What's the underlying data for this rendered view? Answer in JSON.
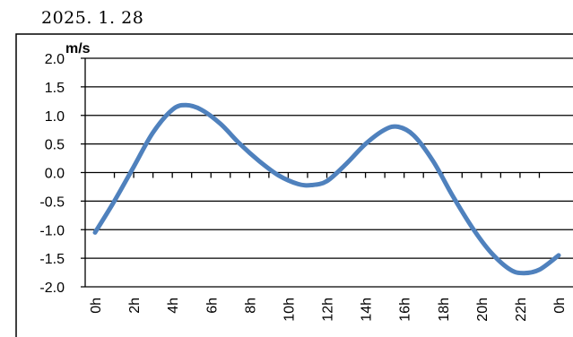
{
  "header": {
    "date": "2025.  1. 28"
  },
  "chart_data": {
    "type": "line",
    "ylabel": "m/s",
    "ylim": [
      -2.0,
      2.0
    ],
    "yticks": [
      "2.0",
      "1.5",
      "1.0",
      "0.5",
      "0.0",
      "-0.5",
      "-1.0",
      "-1.5",
      "-2.0"
    ],
    "ytick_values": [
      2.0,
      1.5,
      1.0,
      0.5,
      0.0,
      -0.5,
      -1.0,
      -1.5,
      -2.0
    ],
    "xlim": [
      0,
      24
    ],
    "xtick_values": [
      0,
      2,
      4,
      6,
      8,
      10,
      12,
      14,
      16,
      18,
      20,
      22,
      24
    ],
    "xticks": [
      "0h",
      "2h",
      "4h",
      "6h",
      "8h",
      "10h",
      "12h",
      "14h",
      "16h",
      "18h",
      "20h",
      "22h",
      "0h"
    ],
    "grid": true,
    "line_color": "#4f81bd",
    "series": [
      {
        "x": [
          0,
          1,
          2,
          3,
          4,
          4.7,
          5.5,
          6.5,
          7.5,
          8.5,
          9.5,
          10.5,
          11.2,
          12,
          13,
          14,
          15,
          15.7,
          16.5,
          17.5,
          18.5,
          19.5,
          20.5,
          21.5,
          22.2,
          23,
          24
        ],
        "y": [
          -1.05,
          -0.5,
          0.1,
          0.7,
          1.1,
          1.18,
          1.1,
          0.85,
          0.5,
          0.2,
          -0.05,
          -0.2,
          -0.22,
          -0.15,
          0.15,
          0.5,
          0.75,
          0.8,
          0.65,
          0.2,
          -0.4,
          -0.95,
          -1.4,
          -1.7,
          -1.76,
          -1.7,
          -1.45
        ]
      }
    ]
  }
}
